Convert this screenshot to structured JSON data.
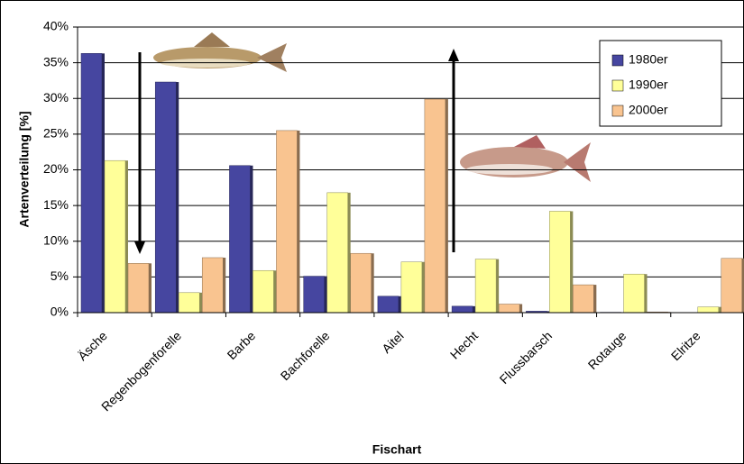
{
  "chart_data": {
    "type": "bar",
    "x_label": "Fischart",
    "y_label": "Artenverteilung [%]",
    "categories": [
      "Äsche",
      "Regenbogenforelle",
      "Barbe",
      "Bachforelle",
      "Aitel",
      "Hecht",
      "Flussbarsch",
      "Rotauge",
      "Elritze"
    ],
    "series": [
      {
        "name": "1980er",
        "color": "#4646a0",
        "values": [
          36.3,
          32.3,
          20.6,
          5.1,
          2.3,
          0.9,
          0.2,
          0.05,
          0
        ]
      },
      {
        "name": "1990er",
        "color": "#ffff99",
        "values": [
          21.3,
          2.8,
          5.9,
          16.8,
          7.1,
          7.5,
          14.2,
          5.4,
          0.8
        ]
      },
      {
        "name": "2000er",
        "color": "#f9c490",
        "values": [
          6.9,
          7.7,
          25.5,
          8.3,
          29.9,
          1.2,
          3.9,
          0.1,
          7.6
        ]
      }
    ],
    "ylim": [
      0,
      40
    ],
    "yticks": [
      {
        "value": 0,
        "label": "0%"
      },
      {
        "value": 5,
        "label": "5%"
      },
      {
        "value": 10,
        "label": "10%"
      },
      {
        "value": 15,
        "label": "15%"
      },
      {
        "value": 20,
        "label": "20%"
      },
      {
        "value": 25,
        "label": "25%"
      },
      {
        "value": 30,
        "label": "30%"
      },
      {
        "value": 35,
        "label": "35%"
      },
      {
        "value": 40,
        "label": "40%"
      }
    ],
    "grid": true,
    "legend": "top-right"
  }
}
